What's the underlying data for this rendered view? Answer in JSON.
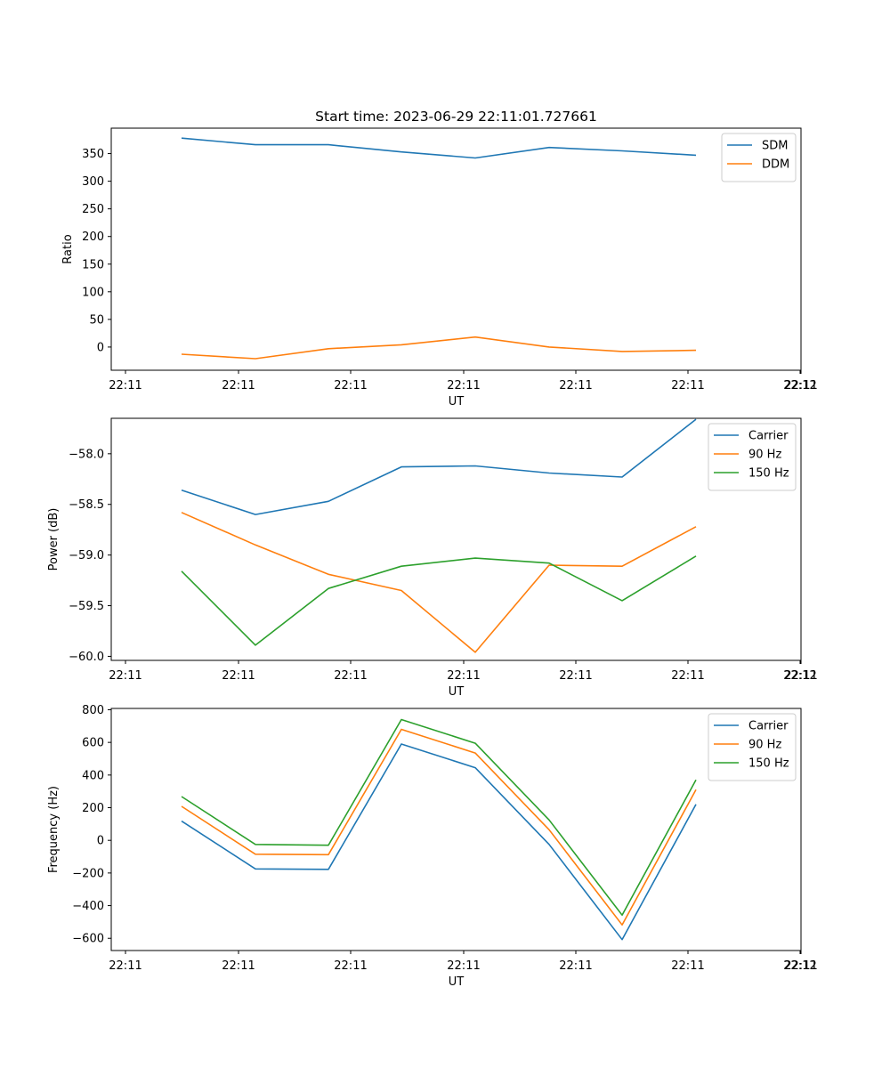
{
  "figure_title": "Start time: 2023-06-29 22:11:01.727661",
  "chart_data": [
    {
      "type": "line",
      "title": "Start time: 2023-06-29 22:11:01.727661",
      "xlabel": "UT",
      "ylabel": "Ratio",
      "x_ticks": [
        "22:11",
        "22:11",
        "22:11",
        "22:11",
        "22:11",
        "22:11",
        "22:11"
      ],
      "x_tick_last": "22:12",
      "y_ticks": [
        0,
        50,
        100,
        150,
        200,
        250,
        300,
        350
      ],
      "ylim": [
        -42,
        396
      ],
      "grid": false,
      "legend_position": "top-right",
      "x": [
        0,
        1,
        2,
        3,
        4,
        5,
        6,
        7
      ],
      "series": [
        {
          "name": "SDM",
          "color": "#1f77b4",
          "values": [
            378,
            366,
            366,
            353,
            342,
            361,
            355,
            347
          ]
        },
        {
          "name": "DDM",
          "color": "#ff7f0e",
          "values": [
            -13,
            -21,
            -3,
            4,
            18,
            0,
            -8,
            -6
          ]
        }
      ]
    },
    {
      "type": "line",
      "title": "",
      "xlabel": "UT",
      "ylabel": "Power (dB)",
      "x_ticks": [
        "22:11",
        "22:11",
        "22:11",
        "22:11",
        "22:11",
        "22:11",
        "22:11"
      ],
      "x_tick_last": "22:12",
      "y_ticks": [
        -60.0,
        -59.5,
        -59.0,
        -58.5,
        -58.0
      ],
      "y_tick_labels": [
        "−60.0",
        "−59.5",
        "−59.0",
        "−58.5",
        "−58.0"
      ],
      "ylim": [
        -60.04,
        -57.65
      ],
      "grid": false,
      "legend_position": "top-right",
      "x": [
        0,
        1,
        2,
        3,
        4,
        5,
        6,
        7
      ],
      "series": [
        {
          "name": "Carrier",
          "color": "#1f77b4",
          "values": [
            -58.36,
            -58.6,
            -58.47,
            -58.13,
            -58.12,
            -58.19,
            -58.23,
            -57.66
          ]
        },
        {
          "name": "90 Hz",
          "color": "#ff7f0e",
          "values": [
            -58.58,
            -58.9,
            -59.19,
            -59.35,
            -59.96,
            -59.1,
            -59.11,
            -58.72
          ]
        },
        {
          "name": "150 Hz",
          "color": "#2ca02c",
          "values": [
            -59.16,
            -59.89,
            -59.33,
            -59.11,
            -59.03,
            -59.08,
            -59.45,
            -59.01
          ]
        }
      ]
    },
    {
      "type": "line",
      "title": "",
      "xlabel": "UT",
      "ylabel": "Frequency (Hz)",
      "x_ticks": [
        "22:11",
        "22:11",
        "22:11",
        "22:11",
        "22:11",
        "22:11",
        "22:11"
      ],
      "x_tick_last": "22:12",
      "y_ticks": [
        -600,
        -400,
        -200,
        0,
        200,
        400,
        600,
        800
      ],
      "y_tick_labels": [
        "−600",
        "−400",
        "−200",
        "0",
        "200",
        "400",
        "600",
        "800"
      ],
      "ylim": [
        -675,
        808
      ],
      "grid": false,
      "legend_position": "top-right",
      "x": [
        0,
        1,
        2,
        3,
        4,
        5,
        6,
        7
      ],
      "series": [
        {
          "name": "Carrier",
          "color": "#1f77b4",
          "values": [
            118,
            -175,
            -178,
            590,
            445,
            -25,
            -608,
            220
          ]
        },
        {
          "name": "90 Hz",
          "color": "#ff7f0e",
          "values": [
            208,
            -85,
            -88,
            680,
            535,
            65,
            -518,
            310
          ]
        },
        {
          "name": "150 Hz",
          "color": "#2ca02c",
          "values": [
            268,
            -25,
            -30,
            740,
            595,
            125,
            -458,
            370
          ]
        }
      ]
    }
  ]
}
